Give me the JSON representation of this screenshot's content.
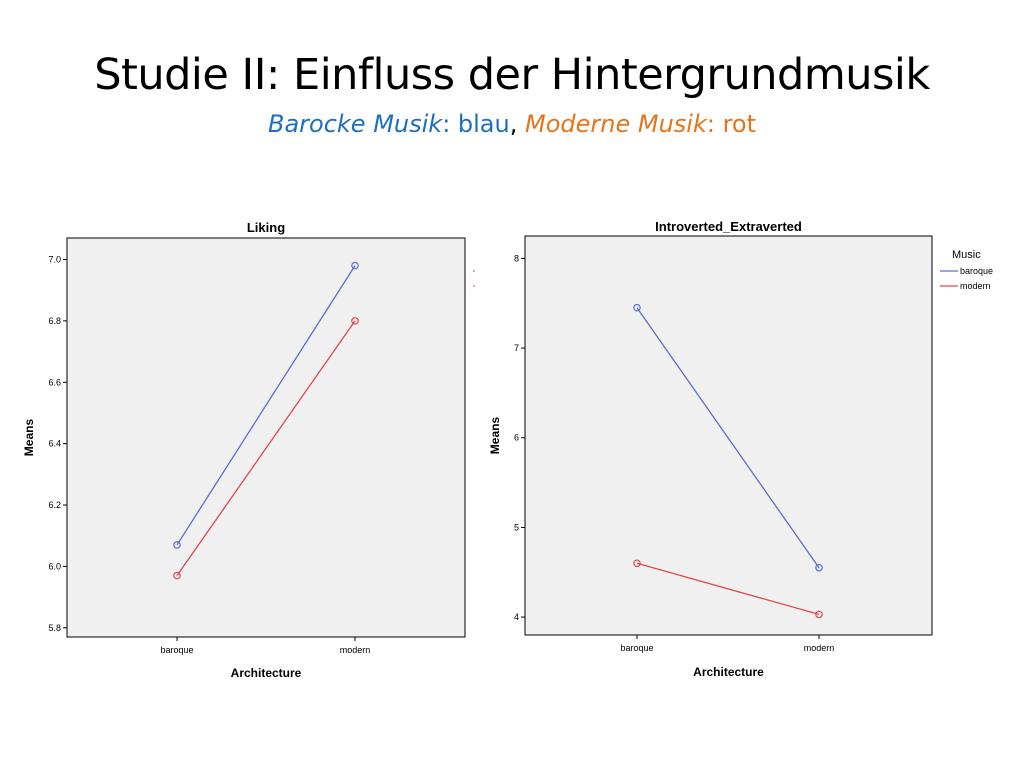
{
  "slide": {
    "title": "Studie II: Einfluss der Hintergrundmusik",
    "subtitle": {
      "blue_label": "Barocke Musik",
      "blue_sep": ": ",
      "blue_value": "blau",
      "comma": ", ",
      "orange_label": "Moderne Musik",
      "orange_sep": ": ",
      "orange_value": "rot"
    }
  },
  "colors": {
    "baroque": "#5A6FC8",
    "modern": "#E0474C",
    "plot_bg": "#F0F0F0",
    "accent_blue": "#1F6FBF",
    "accent_orange": "#E5741A"
  },
  "chart_data": [
    {
      "type": "line",
      "title": "Liking",
      "xlabel": "Architecture",
      "ylabel": "Means",
      "categories": [
        "baroque",
        "modern"
      ],
      "series": [
        {
          "key": "baroque",
          "values": [
            6.07,
            6.98
          ]
        },
        {
          "key": "modern",
          "values": [
            5.97,
            6.8
          ]
        }
      ],
      "ylim": [
        5.77,
        7.07
      ],
      "yticks": [
        "5.8",
        "6.0",
        "6.2",
        "6.4",
        "6.6",
        "6.8",
        "7.0"
      ],
      "legend": "none",
      "grid": false
    },
    {
      "type": "line",
      "title": "Introverted_Extraverted",
      "xlabel": "Architecture",
      "ylabel": "Means",
      "categories": [
        "baroque",
        "modern"
      ],
      "series": [
        {
          "name": "baroque",
          "key": "baroque",
          "values": [
            7.45,
            4.55
          ]
        },
        {
          "name": "modern",
          "key": "modern",
          "values": [
            4.6,
            4.03
          ]
        }
      ],
      "ylim": [
        3.8,
        8.25
      ],
      "yticks": [
        "4",
        "5",
        "6",
        "7",
        "8"
      ],
      "legend": "right",
      "legend_title": "Music",
      "grid": false
    }
  ]
}
